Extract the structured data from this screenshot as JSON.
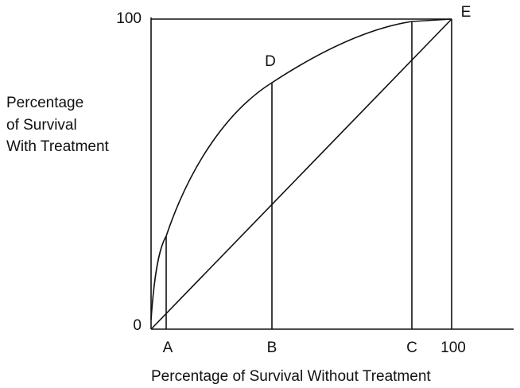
{
  "y_axis": {
    "label_lines": [
      "Percentage",
      "of Survival",
      "With Treatment"
    ],
    "top": "100",
    "bottom": "0"
  },
  "x_axis": {
    "label": "Percentage of Survival Without Treatment",
    "ticks": [
      "A",
      "B",
      "C",
      "100"
    ]
  },
  "points": {
    "d": "D",
    "e": "E"
  }
}
